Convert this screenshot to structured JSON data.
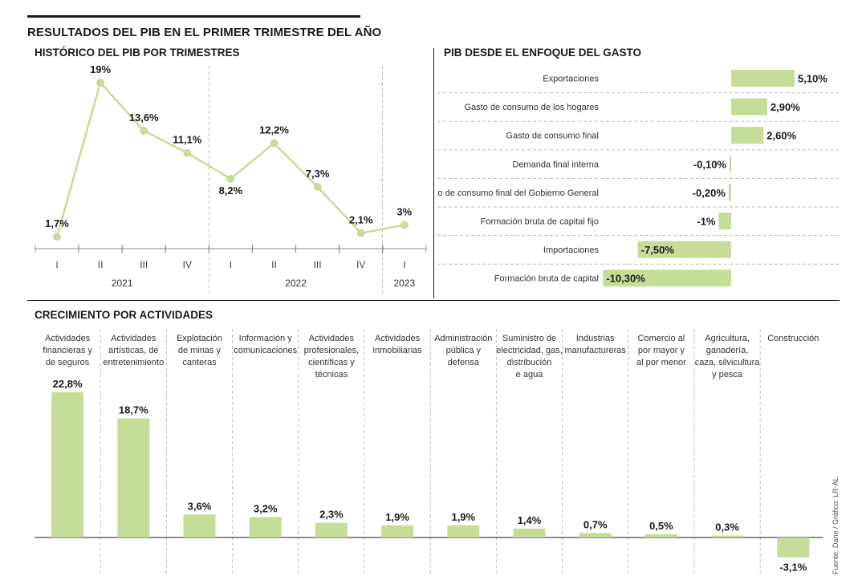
{
  "header": {
    "title": "RESULTADOS DEL PIB EN EL PRIMER TRIMESTRE DEL AÑO"
  },
  "panels": {
    "historico": "HISTÓRICO DEL PIB POR TRIMESTRES",
    "gasto": "PIB DESDE EL ENFOQUE DEL GASTO",
    "actividades": "CRECIMIENTO POR ACTIVIDADES"
  },
  "credit": "Fuente: Dane / Gráfico: LR-AL",
  "colors": {
    "bar": "#c5dd96",
    "line": "#c5dd96",
    "text": "#1a1a1a",
    "grid": "#bdbdbd"
  },
  "chart_data": [
    {
      "type": "line",
      "title": "HISTÓRICO DEL PIB POR TRIMESTRES",
      "categories": [
        "I",
        "II",
        "III",
        "IV",
        "I",
        "II",
        "III",
        "IV",
        "I"
      ],
      "year_groups": [
        {
          "label": "2021",
          "count": 4
        },
        {
          "label": "2022",
          "count": 4
        },
        {
          "label": "2023",
          "count": 1
        }
      ],
      "values": [
        1.7,
        19,
        13.6,
        11.1,
        8.2,
        12.2,
        7.3,
        2.1,
        3
      ],
      "labels": [
        "1,7%",
        "19%",
        "13,6%",
        "11,1%",
        "8,2%",
        "12,2%",
        "7,3%",
        "2,1%",
        "3%"
      ],
      "grid": false
    },
    {
      "type": "bar",
      "orientation": "horizontal",
      "title": "PIB DESDE EL ENFOQUE DEL GASTO",
      "categories": [
        "Exportaciones",
        "Gasto de consumo de los hogares",
        "Gasto de consumo final",
        "Demanda final interna",
        "Gasto de consumo final del Gobierno General",
        "Formación bruta de capital fijo",
        "Importaciones",
        "Formación bruta de capital"
      ],
      "values": [
        5.1,
        2.9,
        2.6,
        -0.1,
        -0.2,
        -1,
        -7.5,
        -10.3
      ],
      "labels": [
        "5,10%",
        "2,90%",
        "2,60%",
        "-0,10%",
        "-0,20%",
        "-1%",
        "-7,50%",
        "-10,30%"
      ]
    },
    {
      "type": "bar",
      "title": "CRECIMIENTO POR ACTIVIDADES",
      "categories": [
        [
          "Actividades",
          "financieras y",
          "de seguros"
        ],
        [
          "Actividades",
          "artísticas, de",
          "entretenimiento"
        ],
        [
          "Explotación",
          "de minas y",
          "canteras"
        ],
        [
          "Información y",
          "comunicaciones"
        ],
        [
          "Actividades",
          "profesionales,",
          "científicas y",
          "técnicas"
        ],
        [
          "Actividades",
          "inmobiliarias"
        ],
        [
          "Administración",
          "pública y",
          "defensa"
        ],
        [
          "Suministro de",
          "electricidad, gas,",
          "distribución",
          "e agua"
        ],
        [
          "Industrias",
          "manufactureras"
        ],
        [
          "Comercio al",
          "por mayor y",
          "al por menor"
        ],
        [
          "Agricultura,",
          "ganadería,",
          "caza, silvicultura",
          "y pesca"
        ],
        [
          "Construcción"
        ]
      ],
      "values": [
        22.8,
        18.7,
        3.6,
        3.2,
        2.3,
        1.9,
        1.9,
        1.4,
        0.7,
        0.5,
        0.3,
        -3.1
      ],
      "labels": [
        "22,8%",
        "18,7%",
        "3,6%",
        "3,2%",
        "2,3%",
        "1,9%",
        "1,9%",
        "1,4%",
        "0,7%",
        "0,5%",
        "0,3%",
        "-3,1%"
      ]
    }
  ]
}
